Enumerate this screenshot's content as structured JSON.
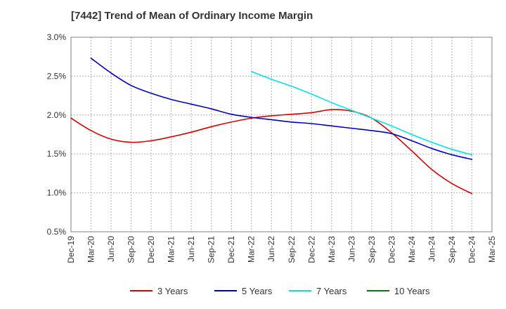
{
  "chart_data": {
    "type": "line",
    "title": "[7442]  Trend of Mean of Ordinary Income Margin",
    "xlabel": "",
    "ylabel": "",
    "x_tick_labels": [
      "Dec-19",
      "Mar-20",
      "Jun-20",
      "Sep-20",
      "Dec-20",
      "Mar-21",
      "Jun-21",
      "Sep-21",
      "Dec-21",
      "Mar-22",
      "Jun-22",
      "Sep-22",
      "Dec-22",
      "Mar-23",
      "Jun-23",
      "Sep-23",
      "Dec-23",
      "Mar-24",
      "Jun-24",
      "Sep-24",
      "Dec-24",
      "Mar-25"
    ],
    "y_tick_labels": [
      "3.0%",
      "2.5%",
      "2.0%",
      "1.5%",
      "1.0%",
      "0.5%"
    ],
    "y_ticks": [
      3.0,
      2.5,
      2.0,
      1.5,
      1.0,
      0.5
    ],
    "ylim": [
      0.5,
      3.0
    ],
    "grid": true,
    "legend_position": "bottom",
    "series": [
      {
        "name": "3 Years",
        "color": "#dd0000",
        "values": [
          1.96,
          1.8,
          1.69,
          1.65,
          1.67,
          1.72,
          1.78,
          1.85,
          1.91,
          1.96,
          1.99,
          2.01,
          2.03,
          2.07,
          2.05,
          1.96,
          1.77,
          1.54,
          1.3,
          1.12,
          0.99,
          null
        ]
      },
      {
        "name": "5 Years",
        "color": "#0000cc",
        "values": [
          null,
          2.73,
          2.54,
          2.38,
          2.28,
          2.2,
          2.14,
          2.08,
          2.01,
          1.97,
          1.94,
          1.91,
          1.89,
          1.86,
          1.83,
          1.8,
          1.76,
          1.67,
          1.57,
          1.49,
          1.43,
          null
        ]
      },
      {
        "name": "7 Years",
        "color": "#00e5e5",
        "values": [
          null,
          null,
          null,
          null,
          null,
          null,
          null,
          null,
          null,
          2.56,
          2.46,
          2.37,
          2.27,
          2.16,
          2.06,
          1.96,
          1.86,
          1.75,
          1.65,
          1.56,
          1.49,
          null
        ]
      },
      {
        "name": "10 Years",
        "color": "#008000",
        "values": [
          null,
          null,
          null,
          null,
          null,
          null,
          null,
          null,
          null,
          null,
          null,
          null,
          null,
          null,
          null,
          null,
          null,
          null,
          null,
          null,
          null,
          null
        ]
      }
    ]
  }
}
